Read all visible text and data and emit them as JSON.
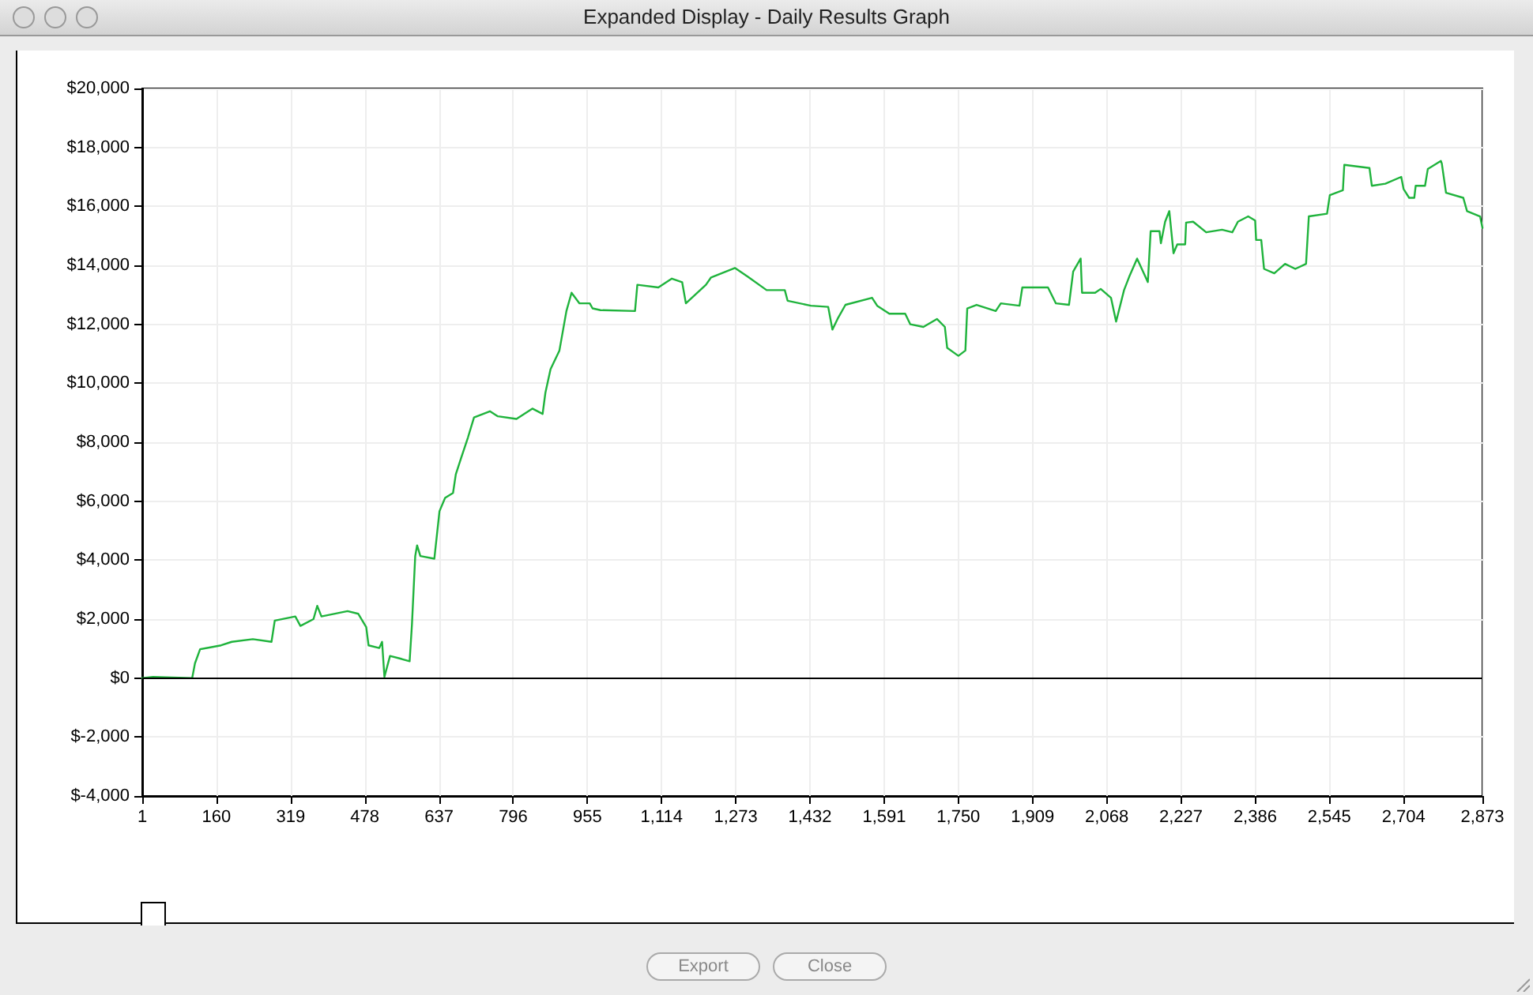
{
  "chart_data": {
    "type": "line",
    "title": "Expanded Display - Daily Results Graph",
    "x": [
      1,
      24,
      108,
      114,
      125,
      170,
      193,
      238,
      278,
      285,
      329,
      340,
      368,
      376,
      385,
      441,
      464,
      481,
      486,
      509,
      515,
      520,
      532,
      554,
      574,
      579,
      586,
      590,
      597,
      627,
      638,
      650,
      667,
      673,
      684,
      699,
      712,
      746,
      763,
      803,
      837,
      859,
      865,
      876,
      895,
      910,
      921,
      938,
      960,
      966,
      983,
      1057,
      1062,
      1107,
      1136,
      1158,
      1166,
      1209,
      1220,
      1271,
      1299,
      1339,
      1378,
      1384,
      1434,
      1471,
      1480,
      1491,
      1508,
      1565,
      1576,
      1602,
      1636,
      1647,
      1675,
      1704,
      1721,
      1726,
      1750,
      1765,
      1769,
      1789,
      1830,
      1841,
      1881,
      1887,
      1910,
      1942,
      1959,
      1987,
      1996,
      2012,
      2015,
      2043,
      2055,
      2077,
      2088,
      2105,
      2116,
      2133,
      2156,
      2162,
      2181,
      2184,
      2193,
      2202,
      2211,
      2219,
      2236,
      2238,
      2253,
      2281,
      2315,
      2337,
      2349,
      2371,
      2386,
      2388,
      2399,
      2405,
      2427,
      2450,
      2472,
      2495,
      2501,
      2540,
      2546,
      2574,
      2577,
      2631,
      2636,
      2665,
      2699,
      2704,
      2716,
      2727,
      2730,
      2750,
      2756,
      2784,
      2786,
      2795,
      2832,
      2840,
      2868,
      2873
    ],
    "series": [
      {
        "color": "#1fb33c",
        "values": [
          0,
          40,
          0,
          500,
          980,
          1110,
          1230,
          1320,
          1230,
          1950,
          2090,
          1770,
          2000,
          2450,
          2090,
          2270,
          2180,
          1730,
          1110,
          1020,
          1230,
          40,
          750,
          660,
          570,
          1820,
          4140,
          4500,
          4140,
          4050,
          5660,
          6110,
          6280,
          6910,
          7450,
          8160,
          8840,
          9050,
          8880,
          8790,
          9140,
          8960,
          9680,
          10480,
          11110,
          12450,
          13070,
          12710,
          12710,
          12540,
          12480,
          12450,
          13340,
          13250,
          13550,
          13430,
          12710,
          13340,
          13590,
          13910,
          13610,
          13160,
          13160,
          12800,
          12630,
          12590,
          11820,
          12180,
          12660,
          12900,
          12630,
          12360,
          12360,
          12000,
          11910,
          12180,
          11910,
          11200,
          10930,
          11110,
          12540,
          12660,
          12450,
          12710,
          12630,
          13250,
          13250,
          13250,
          12710,
          12660,
          13790,
          14230,
          13070,
          13070,
          13200,
          12900,
          12090,
          13160,
          13610,
          14230,
          13430,
          15160,
          15160,
          14750,
          15480,
          15840,
          14410,
          14710,
          14710,
          15450,
          15480,
          15120,
          15210,
          15120,
          15480,
          15660,
          15520,
          14860,
          14860,
          13880,
          13730,
          14050,
          13880,
          14050,
          15660,
          15750,
          16380,
          16550,
          17410,
          17300,
          16700,
          16770,
          17000,
          16590,
          16290,
          16290,
          16700,
          16700,
          17270,
          17540,
          17450,
          16460,
          16290,
          15840,
          15660,
          15270
        ]
      }
    ],
    "xlim": [
      1,
      2873
    ],
    "xticks": [
      1,
      160,
      319,
      478,
      637,
      796,
      955,
      {
        "value": 1114,
        "label": "1,114"
      },
      {
        "value": 1273,
        "label": "1,273"
      },
      {
        "value": 1432,
        "label": "1,432"
      },
      {
        "value": 1591,
        "label": "1,591"
      },
      {
        "value": 1750,
        "label": "1,750"
      },
      {
        "value": 1909,
        "label": "1,909"
      },
      {
        "value": 2068,
        "label": "2,068"
      },
      {
        "value": 2227,
        "label": "2,227"
      },
      {
        "value": 2386,
        "label": "2,386"
      },
      {
        "value": 2545,
        "label": "2,545"
      },
      {
        "value": 2704,
        "label": "2,704"
      },
      {
        "value": 2873,
        "label": "2,873"
      }
    ],
    "ylim": [
      -4000,
      20000
    ],
    "yticks": [
      {
        "value": -4000,
        "label": "$-4,000"
      },
      {
        "value": -2000,
        "label": "$-2,000"
      },
      {
        "value": 0,
        "label": "$0"
      },
      {
        "value": 2000,
        "label": "$2,000"
      },
      {
        "value": 4000,
        "label": "$4,000"
      },
      {
        "value": 6000,
        "label": "$6,000"
      },
      {
        "value": 8000,
        "label": "$8,000"
      },
      {
        "value": 10000,
        "label": "$10,000"
      },
      {
        "value": 12000,
        "label": "$12,000"
      },
      {
        "value": 14000,
        "label": "$14,000"
      },
      {
        "value": 16000,
        "label": "$16,000"
      },
      {
        "value": 18000,
        "label": "$18,000"
      },
      {
        "value": 20000,
        "label": "$20,000"
      }
    ],
    "ref_lines": [
      {
        "axis": "y",
        "value": 0,
        "color": "#000000"
      }
    ],
    "grid": true,
    "marker": "none",
    "line_style": "solid",
    "annotations": [
      "Export",
      "Close"
    ]
  }
}
